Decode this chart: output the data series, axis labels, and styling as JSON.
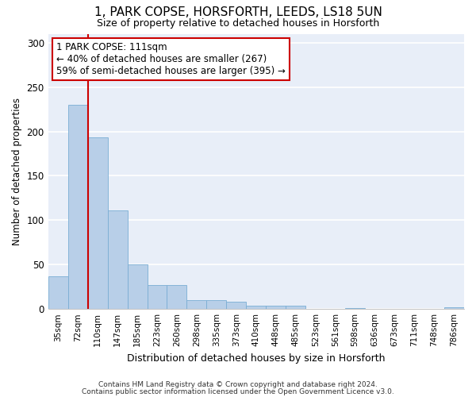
{
  "title_line1": "1, PARK COPSE, HORSFORTH, LEEDS, LS18 5UN",
  "title_line2": "Size of property relative to detached houses in Horsforth",
  "xlabel": "Distribution of detached houses by size in Horsforth",
  "ylabel": "Number of detached properties",
  "bar_labels": [
    "35sqm",
    "72sqm",
    "110sqm",
    "147sqm",
    "185sqm",
    "223sqm",
    "260sqm",
    "298sqm",
    "335sqm",
    "373sqm",
    "410sqm",
    "448sqm",
    "485sqm",
    "523sqm",
    "561sqm",
    "598sqm",
    "636sqm",
    "673sqm",
    "711sqm",
    "748sqm",
    "786sqm"
  ],
  "bar_values": [
    37,
    230,
    193,
    111,
    50,
    27,
    27,
    10,
    10,
    8,
    4,
    4,
    4,
    0,
    0,
    1,
    0,
    0,
    0,
    0,
    2
  ],
  "bar_color": "#b8cfe8",
  "bar_edge_color": "#7aadd4",
  "ylim": [
    0,
    310
  ],
  "yticks": [
    0,
    50,
    100,
    150,
    200,
    250,
    300
  ],
  "property_line_color": "#cc0000",
  "annotation_text": "1 PARK COPSE: 111sqm\n← 40% of detached houses are smaller (267)\n59% of semi-detached houses are larger (395) →",
  "annotation_box_color": "#ffffff",
  "annotation_box_edge": "#cc0000",
  "footer_line1": "Contains HM Land Registry data © Crown copyright and database right 2024.",
  "footer_line2": "Contains public sector information licensed under the Open Government Licence v3.0.",
  "background_color": "#ffffff",
  "plot_bg_color": "#e8eef8",
  "grid_color": "#ffffff"
}
